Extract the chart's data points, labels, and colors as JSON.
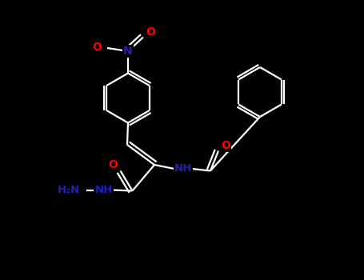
{
  "background_color": "#000000",
  "bond_color": "#ffffff",
  "O_color": "#ff0000",
  "N_color": "#2020bb",
  "figsize": [
    4.55,
    3.5
  ],
  "dpi": 100,
  "xlim": [
    0,
    9.1
  ],
  "ylim": [
    0,
    7.0
  ]
}
